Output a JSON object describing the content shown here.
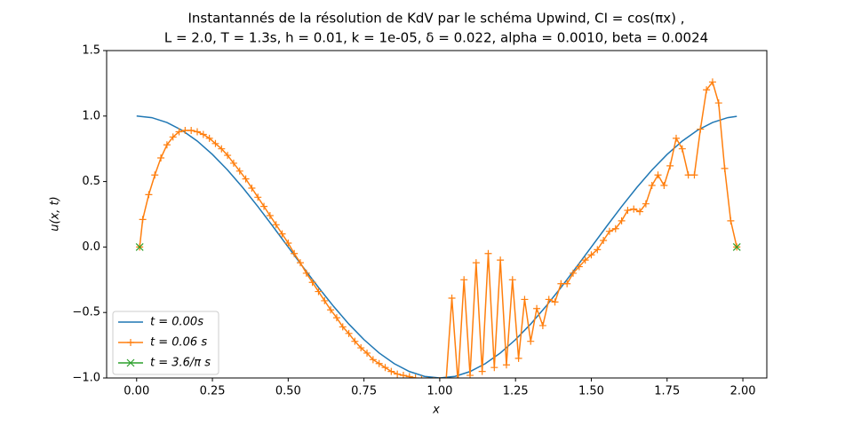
{
  "chart_data": {
    "type": "line",
    "title": "Instantannés de la résolution de KdV par le schéma Upwind, CI = cos(πx) ,",
    "subtitle": "L = 2.0, T = 1.3s, h = 0.01, k = 1e-05, δ = 0.022,  alpha = 0.0010, beta = 0.0024",
    "x_label": "x",
    "y_label": "u(x, t)",
    "xlim": [
      -0.099,
      2.079
    ],
    "ylim": [
      -1.0,
      1.5
    ],
    "xticks": [
      {
        "value": 0,
        "label": "0.00"
      },
      {
        "value": 0.25,
        "label": "0.25"
      },
      {
        "value": 0.5,
        "label": "0.50"
      },
      {
        "value": 0.75,
        "label": "0.75"
      },
      {
        "value": 1,
        "label": "1.00"
      },
      {
        "value": 1.25,
        "label": "1.25"
      },
      {
        "value": 1.5,
        "label": "1.50"
      },
      {
        "value": 1.75,
        "label": "1.75"
      },
      {
        "value": 2,
        "label": "2.00"
      }
    ],
    "yticks": [
      {
        "value": -1,
        "label": "−1.0"
      },
      {
        "value": -0.5,
        "label": "−0.5"
      },
      {
        "value": 0,
        "label": "0.0"
      },
      {
        "value": 0.5,
        "label": "0.5"
      },
      {
        "value": 1,
        "label": "1.0"
      },
      {
        "value": 1.5,
        "label": "1.5"
      }
    ],
    "legend": "lower left",
    "series": [
      {
        "name": "t = 0.00s",
        "color": "#1f77b4",
        "marker": "none",
        "x": [
          0,
          0.05,
          0.1,
          0.15,
          0.2,
          0.25,
          0.3,
          0.35,
          0.4,
          0.45,
          0.5,
          0.55,
          0.6,
          0.65,
          0.7,
          0.75,
          0.8,
          0.85,
          0.9,
          0.95,
          1,
          1.05,
          1.1,
          1.15,
          1.2,
          1.25,
          1.3,
          1.35,
          1.4,
          1.45,
          1.5,
          1.55,
          1.6,
          1.65,
          1.7,
          1.75,
          1.8,
          1.85,
          1.9,
          1.95,
          1.98
        ],
        "values": [
          1,
          0.988,
          0.951,
          0.891,
          0.809,
          0.707,
          0.588,
          0.454,
          0.309,
          0.156,
          0,
          -0.156,
          -0.309,
          -0.454,
          -0.588,
          -0.707,
          -0.809,
          -0.891,
          -0.951,
          -0.988,
          -1,
          -0.988,
          -0.951,
          -0.891,
          -0.809,
          -0.707,
          -0.588,
          -0.454,
          -0.309,
          -0.156,
          0,
          0.156,
          0.309,
          0.454,
          0.588,
          0.707,
          0.809,
          0.891,
          0.951,
          0.988,
          0.998
        ]
      },
      {
        "name": "t = 0.06 s",
        "color": "#ff7f0e",
        "marker": "+",
        "x": [
          0.01,
          0.02,
          0.04,
          0.06,
          0.08,
          0.1,
          0.12,
          0.14,
          0.16,
          0.18,
          0.2,
          0.22,
          0.24,
          0.26,
          0.28,
          0.3,
          0.32,
          0.34,
          0.36,
          0.38,
          0.4,
          0.42,
          0.44,
          0.46,
          0.48,
          0.5,
          0.52,
          0.54,
          0.56,
          0.58,
          0.6,
          0.62,
          0.64,
          0.66,
          0.68,
          0.7,
          0.72,
          0.74,
          0.76,
          0.78,
          0.8,
          0.82,
          0.84,
          0.86,
          0.88,
          0.9,
          0.92,
          0.94,
          0.96,
          0.98,
          1,
          1.02,
          1.04,
          1.06,
          1.08,
          1.1,
          1.12,
          1.14,
          1.16,
          1.18,
          1.2,
          1.22,
          1.24,
          1.26,
          1.28,
          1.3,
          1.32,
          1.34,
          1.36,
          1.38,
          1.4,
          1.42,
          1.44,
          1.46,
          1.48,
          1.5,
          1.52,
          1.54,
          1.56,
          1.58,
          1.6,
          1.62,
          1.64,
          1.66,
          1.68,
          1.7,
          1.72,
          1.74,
          1.76,
          1.78,
          1.8,
          1.82,
          1.84,
          1.86,
          1.88,
          1.9,
          1.92,
          1.94,
          1.96,
          1.98
        ],
        "values": [
          0,
          0.21,
          0.4,
          0.55,
          0.68,
          0.78,
          0.84,
          0.88,
          0.89,
          0.89,
          0.88,
          0.86,
          0.83,
          0.79,
          0.75,
          0.7,
          0.64,
          0.58,
          0.52,
          0.45,
          0.38,
          0.31,
          0.24,
          0.17,
          0.1,
          0.03,
          -0.05,
          -0.12,
          -0.2,
          -0.27,
          -0.34,
          -0.41,
          -0.48,
          -0.54,
          -0.61,
          -0.66,
          -0.72,
          -0.77,
          -0.81,
          -0.86,
          -0.89,
          -0.92,
          -0.95,
          -0.97,
          -0.98,
          -0.99,
          -1.0,
          -1.01,
          -1.02,
          -1.02,
          -1.02,
          -1.05,
          -0.39,
          -1.03,
          -0.25,
          -0.98,
          -0.12,
          -0.95,
          -0.05,
          -0.92,
          -0.1,
          -0.9,
          -0.25,
          -0.85,
          -0.4,
          -0.72,
          -0.47,
          -0.6,
          -0.4,
          -0.42,
          -0.28,
          -0.28,
          -0.2,
          -0.15,
          -0.1,
          -0.06,
          -0.02,
          0.05,
          0.12,
          0.14,
          0.2,
          0.28,
          0.29,
          0.27,
          0.33,
          0.47,
          0.55,
          0.47,
          0.62,
          0.83,
          0.75,
          0.55,
          0.55,
          0.9,
          1.2,
          1.26,
          1.1,
          0.6,
          0.2,
          0
        ]
      },
      {
        "name": "t = 3.6/π s",
        "color": "#2ca02c",
        "marker": "x",
        "x": [
          0.01,
          1.98
        ],
        "values": [
          0,
          0
        ]
      }
    ]
  }
}
